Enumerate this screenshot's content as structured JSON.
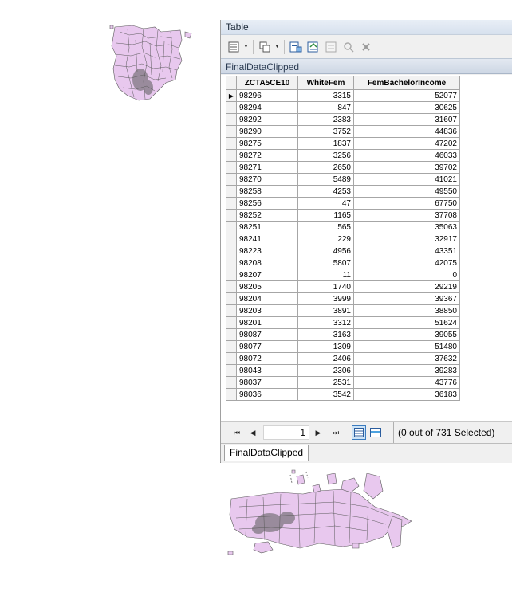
{
  "window": {
    "title": "Table"
  },
  "toolbar": {
    "icons": [
      "table-options-icon",
      "related-tables-icon",
      "select-by-attributes-icon",
      "switch-selection-icon",
      "clear-selection-icon",
      "zoom-to-selected-icon",
      "delete-selected-icon"
    ]
  },
  "tab_header": "FinalDataClipped",
  "grid": {
    "columns": [
      "ZCTA5CE10",
      "WhiteFem",
      "FemBachelorIncome"
    ],
    "rows": [
      [
        "98296",
        "3315",
        "52077"
      ],
      [
        "98294",
        "847",
        "30625"
      ],
      [
        "98292",
        "2383",
        "31607"
      ],
      [
        "98290",
        "3752",
        "44836"
      ],
      [
        "98275",
        "1837",
        "47202"
      ],
      [
        "98272",
        "3256",
        "46033"
      ],
      [
        "98271",
        "2650",
        "39702"
      ],
      [
        "98270",
        "5489",
        "41021"
      ],
      [
        "98258",
        "4253",
        "49550"
      ],
      [
        "98256",
        "47",
        "67750"
      ],
      [
        "98252",
        "1165",
        "37708"
      ],
      [
        "98251",
        "565",
        "35063"
      ],
      [
        "98241",
        "229",
        "32917"
      ],
      [
        "98223",
        "4956",
        "43351"
      ],
      [
        "98208",
        "5807",
        "42075"
      ],
      [
        "98207",
        "11",
        "0"
      ],
      [
        "98205",
        "1740",
        "29219"
      ],
      [
        "98204",
        "3999",
        "39367"
      ],
      [
        "98203",
        "3891",
        "38850"
      ],
      [
        "98201",
        "3312",
        "51624"
      ],
      [
        "98087",
        "3163",
        "39055"
      ],
      [
        "98077",
        "1309",
        "51480"
      ],
      [
        "98072",
        "2406",
        "37632"
      ],
      [
        "98043",
        "2306",
        "39283"
      ],
      [
        "98037",
        "2531",
        "43776"
      ],
      [
        "98036",
        "3542",
        "36183"
      ]
    ],
    "current_row_marker": "▶"
  },
  "nav": {
    "first": "⏮",
    "prev": "◀",
    "record": "1",
    "next": "▶",
    "last": "⏭",
    "selection_status": "(0 out of 731 Selected)"
  },
  "bottom_tab": "FinalDataClipped",
  "colors": {
    "map_fill": "#e8c8ee",
    "map_stroke": "#5a5a5a",
    "accent": "#3b7bbf"
  }
}
